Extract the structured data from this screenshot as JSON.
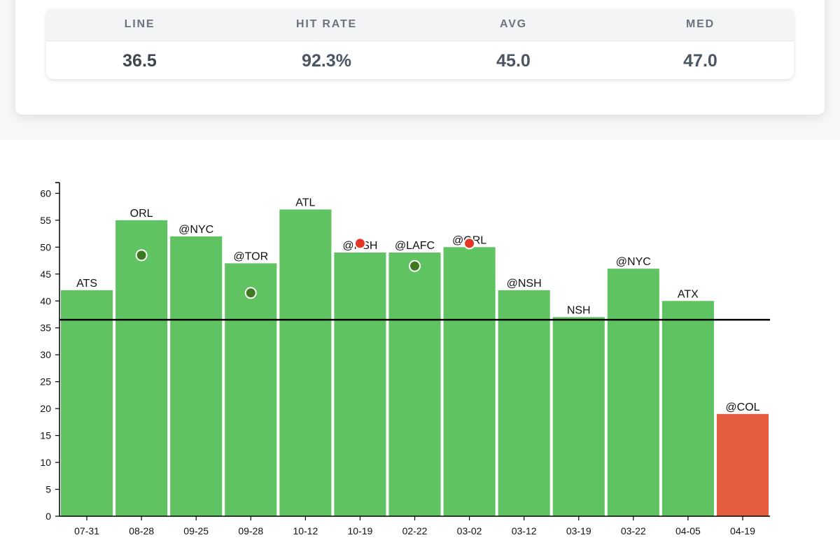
{
  "stats": {
    "headers": [
      "LINE",
      "HIT RATE",
      "AVG",
      "MED"
    ],
    "values": [
      "36.5",
      "92.3%",
      "45.0",
      "47.0"
    ]
  },
  "chart_data": {
    "type": "bar",
    "categories": [
      "07-31",
      "08-28",
      "09-25",
      "09-28",
      "10-12",
      "10-19",
      "02-22",
      "03-02",
      "03-12",
      "03-19",
      "03-22",
      "04-05",
      "04-19"
    ],
    "opponents": [
      "ATS",
      "ORL",
      "@NYC",
      "@TOR",
      "ATL",
      "@NSH",
      "@LAFC",
      "@ORL",
      "@NSH",
      "NSH",
      "@NYC",
      "ATX",
      "@COL"
    ],
    "values": [
      42,
      55,
      52,
      47,
      57,
      49,
      49,
      50,
      42,
      37,
      46,
      40,
      19
    ],
    "markers": [
      null,
      48.5,
      null,
      41.5,
      null,
      50.7,
      46.5,
      50.7,
      null,
      null,
      null,
      null,
      null
    ],
    "marker_colors": [
      null,
      "#3d7a1f",
      null,
      "#3d7a1f",
      null,
      "#e53524",
      "#3d7a1f",
      "#e53524",
      null,
      null,
      null,
      null,
      null
    ],
    "line": 36.5,
    "ylim": [
      0,
      62
    ],
    "yticks": [
      0,
      5,
      10,
      15,
      20,
      25,
      30,
      35,
      40,
      45,
      50,
      55,
      60
    ],
    "colors": {
      "over": "#60c362",
      "under": "#e55c3f"
    }
  }
}
